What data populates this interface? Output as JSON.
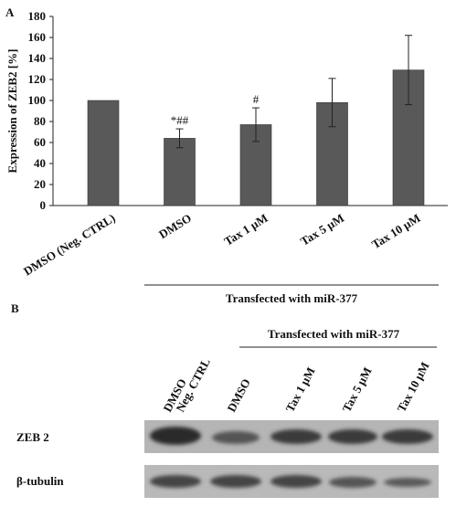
{
  "panel_a": "A",
  "chart_data": {
    "type": "bar",
    "y_label": "Expression of ZEB2 [%]",
    "categories": [
      "DMSO (Neg. CTRL)",
      "DMSO",
      "Tax 1 µM",
      "Tax 5 µM",
      "Tax 10 µM"
    ],
    "values": [
      100,
      64,
      77,
      98,
      129
    ],
    "errors": [
      null,
      9,
      16,
      23,
      33
    ],
    "annotations": [
      null,
      "*##",
      "#",
      null,
      null
    ],
    "color": "#595959",
    "ylim": [
      0,
      180
    ],
    "yticks": [
      0,
      20,
      40,
      60,
      80,
      100,
      120,
      140,
      160,
      180
    ],
    "group_label": "Transfected with miR-377"
  },
  "panel_b": "B",
  "blot": {
    "group_label": "Transfected with miR-377",
    "lanes": [
      [
        "DMSO",
        "Neg. CTRL"
      ],
      [
        "DMSO"
      ],
      [
        "Tax 1 µM"
      ],
      [
        "Tax 5 µM"
      ],
      [
        "Tax 10 µM"
      ]
    ],
    "rows": [
      "ZEB 2",
      "β-tubulin"
    ]
  }
}
